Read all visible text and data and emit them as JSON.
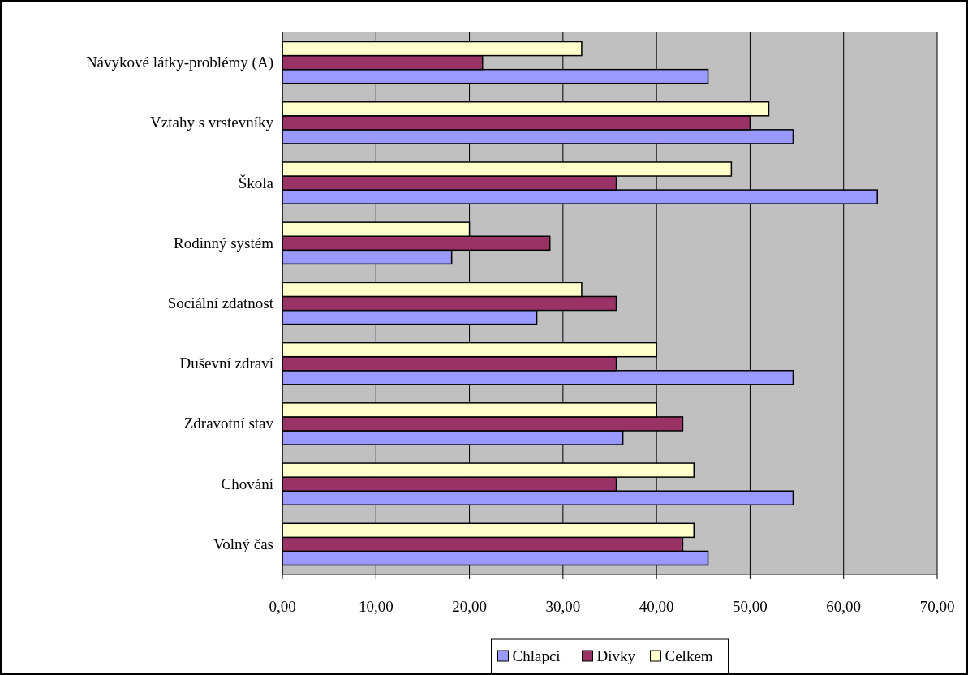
{
  "chart_data": {
    "type": "bar",
    "orientation": "horizontal",
    "categories": [
      "Návykové látky-problémy (A)",
      "Vztahy s vrstevníky",
      "Škola",
      "Rodinný systém",
      "Sociální zdatnost",
      "Duševní zdraví",
      "Zdravotní stav ",
      "Chování",
      "Volný čas"
    ],
    "series": [
      {
        "name": "Chlapci",
        "color": "#9999ff",
        "values": [
          45.5,
          54.6,
          63.6,
          18.1,
          27.2,
          54.6,
          36.4,
          54.6,
          45.5
        ]
      },
      {
        "name": "Dívky",
        "color": "#993366",
        "values": [
          21.4,
          50,
          35.7,
          28.6,
          35.7,
          35.7,
          42.8,
          35.7,
          42.8
        ]
      },
      {
        "name": "Celkem",
        "color": "#ffffcc",
        "values": [
          32,
          52,
          48,
          20,
          32,
          40,
          40,
          44,
          44
        ]
      }
    ],
    "xlim": [
      0,
      70
    ],
    "xticks": [
      {
        "value": 0,
        "label": "0,00"
      },
      {
        "value": 10,
        "label": "10,00"
      },
      {
        "value": 20,
        "label": "20,00"
      },
      {
        "value": 30,
        "label": "30,00"
      },
      {
        "value": 40,
        "label": "40,00"
      },
      {
        "value": 50,
        "label": "50,00"
      },
      {
        "value": 60,
        "label": "60,00"
      },
      {
        "value": 70,
        "label": "70,00"
      }
    ],
    "grid": "x",
    "legend": "bottom"
  }
}
